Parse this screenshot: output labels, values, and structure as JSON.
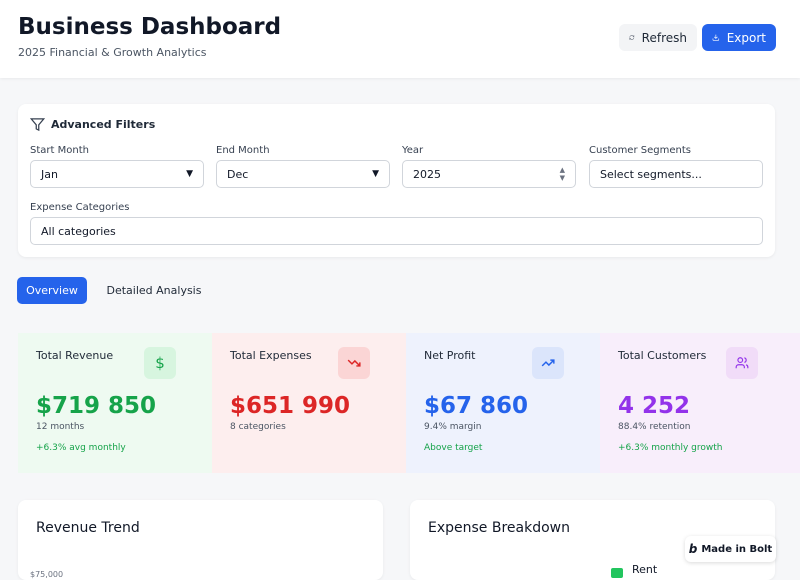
{
  "header": {
    "title": "Business Dashboard",
    "subtitle": "2025 Financial & Growth Analytics",
    "buttons": [
      "Refresh",
      "Export"
    ]
  },
  "filters": {
    "title": "Advanced Filters",
    "fields": [
      {
        "label": "Start Month",
        "value": "Jan"
      },
      {
        "label": "End Month",
        "value": "Dec"
      },
      {
        "label": "Year",
        "value": "2025"
      },
      {
        "label": "Customer Segments",
        "value": "Select segments..."
      },
      {
        "label": "Expense Categories",
        "value": "All categories"
      }
    ]
  },
  "tabs": [
    "Overview",
    "Detailed Analysis"
  ],
  "cards": [
    {
      "title": "Total Revenue",
      "value": "$719 850",
      "detail": "12 months",
      "note": "+6.3% avg monthly"
    },
    {
      "title": "Total Expenses",
      "value": "$651 990",
      "detail": "8 categories"
    },
    {
      "title": "Net Profit",
      "value": "$67 860",
      "detail": "9.4% margin",
      "note": "Above target"
    },
    {
      "title": "Total Customers",
      "value": "4 252",
      "detail": "88.4% retention",
      "note": "+6.3% monthly growth"
    }
  ],
  "panels": [
    {
      "title": "Revenue Trend",
      "axis_label": "$75,000"
    },
    {
      "title": "Expense Breakdown",
      "legend": [
        "Rent"
      ]
    }
  ],
  "badge": "Made in Bolt"
}
